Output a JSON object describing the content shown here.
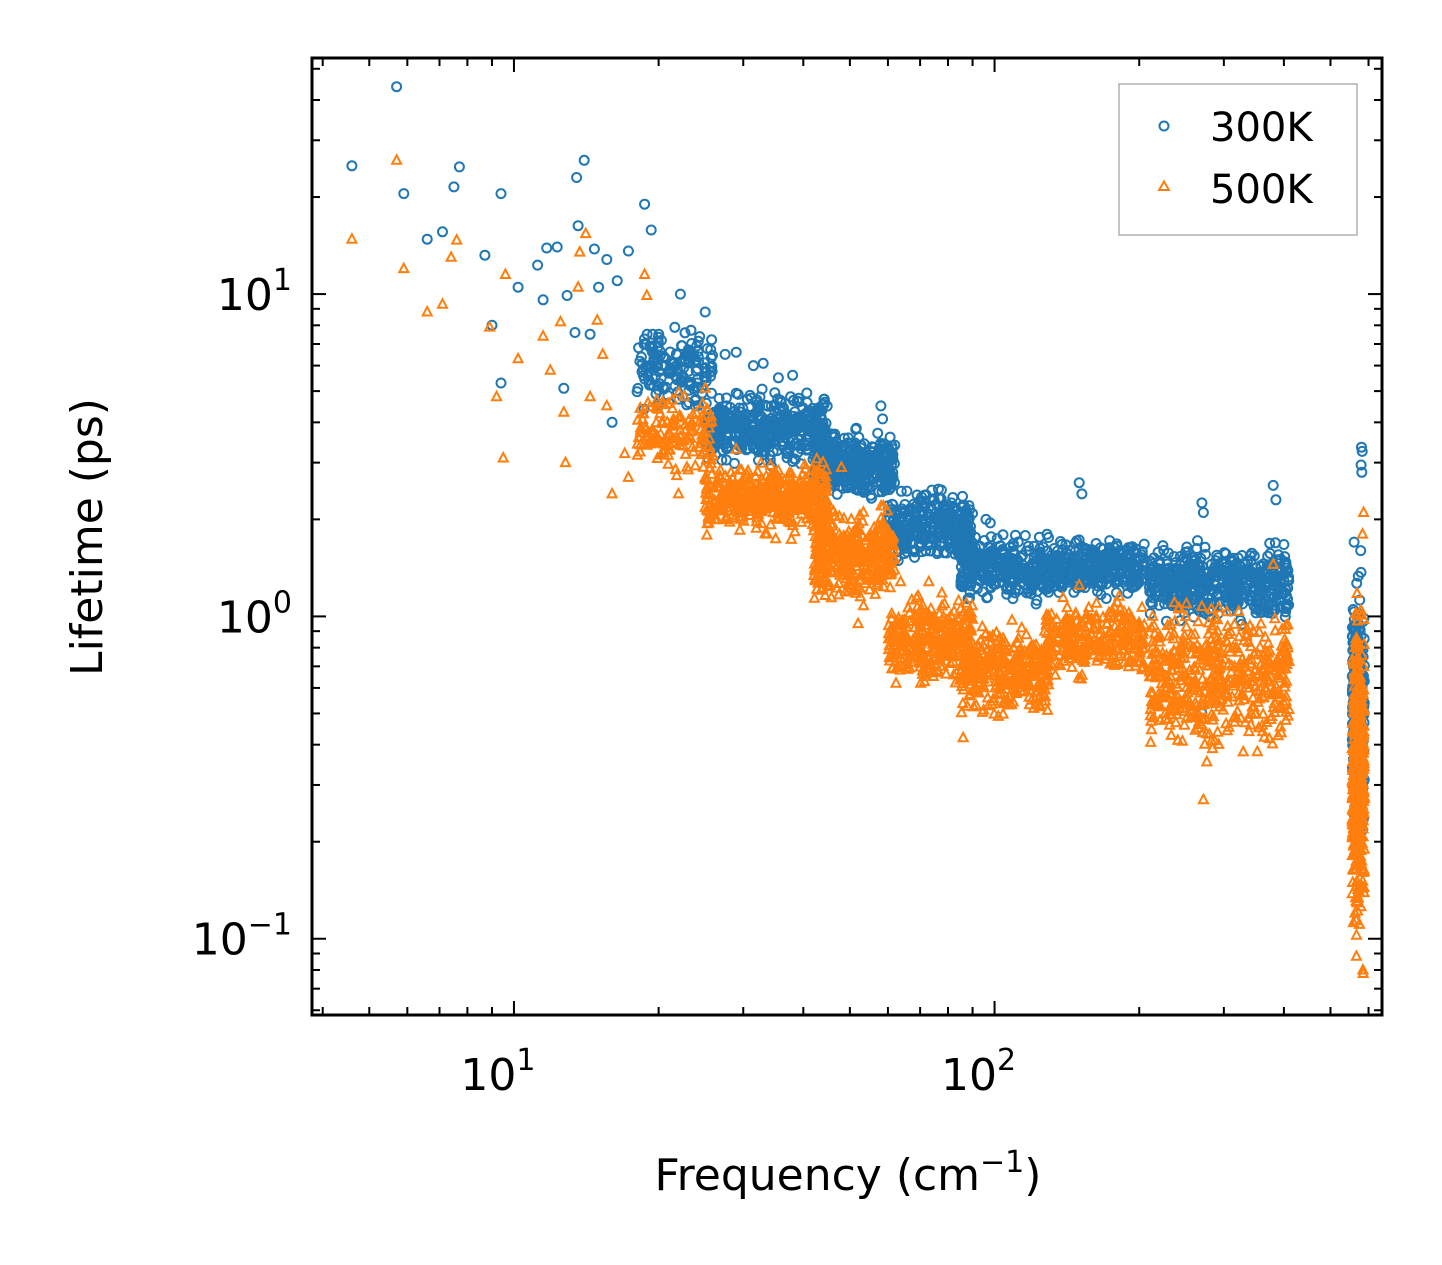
{
  "chart_data": {
    "type": "scatter",
    "title": "",
    "xlabel": "Frequency (cm",
    "xlabel_sup": "−1",
    "xlabel_end": ")",
    "ylabel": "Lifetime (ps)",
    "xscale": "log",
    "yscale": "log",
    "xlim": [
      3.8,
      640
    ],
    "ylim": [
      0.058,
      54
    ],
    "x_ticks": [
      {
        "value": 10,
        "base": "10",
        "exp": "1"
      },
      {
        "value": 100,
        "base": "10",
        "exp": "2"
      }
    ],
    "y_ticks": [
      {
        "value": 0.1,
        "base": "10",
        "exp": "−1"
      },
      {
        "value": 1,
        "base": "10",
        "exp": "0"
      },
      {
        "value": 10,
        "base": "10",
        "exp": "1"
      }
    ],
    "legend": {
      "position": "upper-right"
    },
    "series": [
      {
        "name": "300K",
        "marker": "circle",
        "color": "#1f77b4",
        "points": [
          [
            4.6,
            25.0
          ],
          [
            5.7,
            44.0
          ],
          [
            5.9,
            20.5
          ],
          [
            6.6,
            14.8
          ],
          [
            7.1,
            15.6
          ],
          [
            7.5,
            21.5
          ],
          [
            7.7,
            24.8
          ],
          [
            8.7,
            13.2
          ],
          [
            9.0,
            8.0
          ],
          [
            9.4,
            20.5
          ],
          [
            9.4,
            5.3
          ],
          [
            10.2,
            10.5
          ],
          [
            11.2,
            12.3
          ],
          [
            11.5,
            9.6
          ],
          [
            11.7,
            13.9
          ],
          [
            12.3,
            14.0
          ],
          [
            12.7,
            5.1
          ],
          [
            12.9,
            9.9
          ],
          [
            13.4,
            7.6
          ],
          [
            13.5,
            23.0
          ],
          [
            13.6,
            16.3
          ],
          [
            14.0,
            26.0
          ],
          [
            14.4,
            7.5
          ],
          [
            14.7,
            13.8
          ],
          [
            15.0,
            10.5
          ],
          [
            15.6,
            12.8
          ],
          [
            16.0,
            4.0
          ],
          [
            16.4,
            11.0
          ],
          [
            17.3,
            13.6
          ],
          [
            18.7,
            19.0
          ],
          [
            19.3,
            15.8
          ],
          [
            20.5,
            6.4
          ],
          [
            22.2,
            10.0
          ],
          [
            24.0,
            6.9
          ],
          [
            25.0,
            8.8
          ],
          [
            27.5,
            6.5
          ],
          [
            29.0,
            6.6
          ],
          [
            31.5,
            6.0
          ],
          [
            33.0,
            6.1
          ],
          [
            35.5,
            5.5
          ],
          [
            38.0,
            5.6
          ],
          [
            58.0,
            4.5
          ],
          [
            58.5,
            4.1
          ],
          [
            62.0,
            3.4
          ],
          [
            96.0,
            2.0
          ],
          [
            98.0,
            1.95
          ],
          [
            150.0,
            2.6
          ],
          [
            152.0,
            2.4
          ],
          [
            270.0,
            2.25
          ],
          [
            272.0,
            2.1
          ],
          [
            380.0,
            2.55
          ],
          [
            385.0,
            2.3
          ],
          [
            560.0,
            1.7
          ],
          [
            580.0,
            3.35
          ],
          [
            582.0,
            3.25
          ],
          [
            579.0,
            2.95
          ],
          [
            581.0,
            2.8
          ],
          [
            578.0,
            1.6
          ],
          [
            270.0,
            0.5
          ]
        ],
        "bands": [
          {
            "x": [
              18,
              26
            ],
            "y": [
              4.0,
              8.5
            ],
            "n": 160
          },
          {
            "x": [
              25,
              45
            ],
            "y": [
              2.8,
              5.3
            ],
            "n": 420
          },
          {
            "x": [
              42,
              62
            ],
            "y": [
              2.1,
              4.0
            ],
            "n": 360
          },
          {
            "x": [
              60,
              90
            ],
            "y": [
              1.35,
              2.7
            ],
            "n": 320
          },
          {
            "x": [
              85,
              130
            ],
            "y": [
              1.05,
              1.9
            ],
            "n": 320
          },
          {
            "x": [
              128,
              205
            ],
            "y": [
              1.1,
              1.85
            ],
            "n": 320
          },
          {
            "x": [
              210,
              410
            ],
            "y": [
              0.9,
              1.8
            ],
            "n": 520
          },
          {
            "x": [
              555,
              588
            ],
            "y": [
              0.15,
              1.6
            ],
            "n": 320
          }
        ]
      },
      {
        "name": "500K",
        "marker": "triangle",
        "color": "#ff7f0e",
        "points": [
          [
            4.6,
            14.8
          ],
          [
            5.7,
            26.0
          ],
          [
            5.9,
            12.0
          ],
          [
            6.6,
            8.8
          ],
          [
            7.1,
            9.3
          ],
          [
            7.4,
            13.0
          ],
          [
            7.6,
            14.7
          ],
          [
            8.9,
            7.9
          ],
          [
            9.2,
            4.8
          ],
          [
            9.5,
            3.1
          ],
          [
            9.6,
            11.5
          ],
          [
            10.2,
            6.3
          ],
          [
            11.5,
            7.4
          ],
          [
            11.9,
            5.8
          ],
          [
            12.5,
            8.2
          ],
          [
            12.7,
            4.3
          ],
          [
            12.8,
            3.0
          ],
          [
            13.6,
            10.5
          ],
          [
            13.7,
            13.5
          ],
          [
            14.1,
            15.4
          ],
          [
            14.4,
            4.8
          ],
          [
            14.9,
            8.3
          ],
          [
            15.3,
            6.5
          ],
          [
            15.6,
            4.5
          ],
          [
            16.0,
            2.4
          ],
          [
            17.0,
            3.2
          ],
          [
            17.3,
            2.7
          ],
          [
            18.7,
            11.5
          ],
          [
            18.9,
            9.9
          ],
          [
            22.0,
            2.4
          ],
          [
            25.0,
            5.1
          ],
          [
            29.0,
            3.3
          ],
          [
            48.0,
            2.9
          ],
          [
            52.0,
            0.95
          ],
          [
            62.0,
            0.9
          ],
          [
            70.0,
            0.75
          ],
          [
            86.0,
            0.42
          ],
          [
            150.0,
            1.25
          ],
          [
            272.0,
            0.27
          ],
          [
            380.0,
            1.45
          ],
          [
            586.0,
            2.1
          ],
          [
            583.0,
            1.8
          ],
          [
            567.0,
            1.0
          ],
          [
            584.0,
            0.08
          ],
          [
            585.0,
            0.078
          ]
        ],
        "bands": [
          {
            "x": [
              18,
              26
            ],
            "y": [
              2.6,
              5.4
            ],
            "n": 140
          },
          {
            "x": [
              25,
              45
            ],
            "y": [
              1.7,
              3.2
            ],
            "n": 420
          },
          {
            "x": [
              42,
              62
            ],
            "y": [
              1.0,
              2.4
            ],
            "n": 360
          },
          {
            "x": [
              60,
              90
            ],
            "y": [
              0.55,
              1.3
            ],
            "n": 320
          },
          {
            "x": [
              85,
              130
            ],
            "y": [
              0.45,
              1.05
            ],
            "n": 320
          },
          {
            "x": [
              128,
              205
            ],
            "y": [
              0.6,
              1.2
            ],
            "n": 300
          },
          {
            "x": [
              210,
              410
            ],
            "y": [
              0.33,
              1.25
            ],
            "n": 520
          },
          {
            "x": [
              555,
              588
            ],
            "y": [
              0.08,
              1.4
            ],
            "n": 380
          }
        ]
      }
    ]
  }
}
